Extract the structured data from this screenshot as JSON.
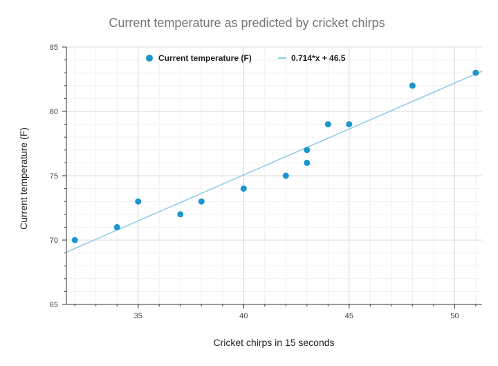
{
  "chart_data": {
    "type": "scatter",
    "title": "Current temperature as predicted by cricket chirps",
    "xlabel": "Cricket chirps in 15 seconds",
    "ylabel": "Current temperature (F)",
    "xlim": [
      31.6,
      51.3
    ],
    "ylim": [
      65,
      85
    ],
    "xticks": [
      35,
      40,
      45,
      50
    ],
    "yticks": [
      65,
      70,
      75,
      80,
      85
    ],
    "grid": true,
    "legend_position": "top",
    "series": [
      {
        "name": "Current temperature (F)",
        "kind": "scatter",
        "color": "#1a97cf",
        "points": [
          [
            32,
            70
          ],
          [
            34,
            71
          ],
          [
            35,
            73
          ],
          [
            37,
            72
          ],
          [
            38,
            73
          ],
          [
            40,
            74
          ],
          [
            42,
            75
          ],
          [
            43,
            76
          ],
          [
            43,
            77
          ],
          [
            44,
            79
          ],
          [
            45,
            79
          ],
          [
            48,
            82
          ],
          [
            51,
            83
          ]
        ]
      },
      {
        "name": "0.714*x + 46.5",
        "kind": "line",
        "color": "#8ccbe6",
        "slope": 0.714,
        "intercept": 46.5
      }
    ]
  }
}
